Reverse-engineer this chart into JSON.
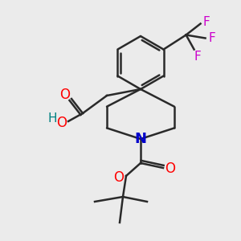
{
  "bg_color": "#ebebeb",
  "line_color": "#2a2a2a",
  "bond_width": 1.8,
  "atom_colors": {
    "O": "#ff0000",
    "N": "#0000cc",
    "F": "#cc00cc",
    "H": "#008080",
    "C": "#2a2a2a"
  },
  "figsize": [
    3.0,
    3.0
  ],
  "dpi": 100
}
